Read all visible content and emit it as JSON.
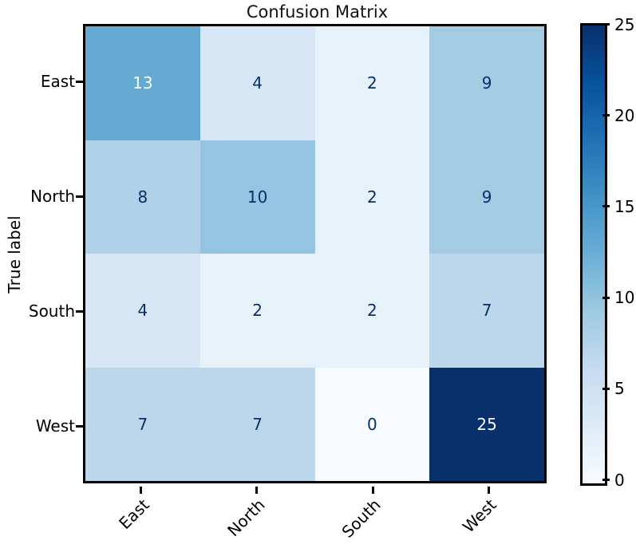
{
  "chart_data": {
    "type": "heatmap",
    "title": "Confusion Matrix",
    "ylabel": "True label",
    "xlabel": "",
    "x_categories": [
      "East",
      "North",
      "South",
      "West"
    ],
    "y_categories": [
      "East",
      "North",
      "South",
      "West"
    ],
    "matrix": [
      [
        13,
        4,
        2,
        9
      ],
      [
        8,
        10,
        2,
        9
      ],
      [
        4,
        2,
        2,
        7
      ],
      [
        7,
        7,
        0,
        25
      ]
    ],
    "vmin": 0,
    "vmax": 25,
    "colorbar_ticks": [
      0,
      5,
      10,
      15,
      20,
      25
    ],
    "legend_position": "right-colorbar",
    "grid": false,
    "colormap": {
      "name": "Blues",
      "stops": [
        "#f7fbff",
        "#deebf7",
        "#c6dbef",
        "#9ecae1",
        "#6baed6",
        "#4292c6",
        "#2171b5",
        "#08519c",
        "#08306b"
      ]
    },
    "text_colors": {
      "dark": "#08306b",
      "light": "#f7fbff"
    }
  }
}
